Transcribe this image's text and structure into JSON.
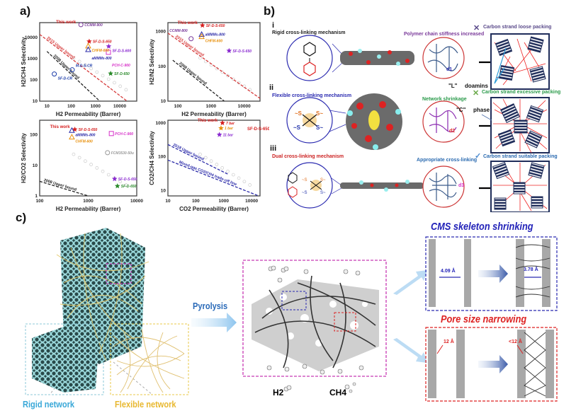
{
  "panels": {
    "a": "a)",
    "b": "b)",
    "c": "c)"
  },
  "chart_data": [
    {
      "type": "scatter",
      "xlabel": "H2 Permeability (Barrer)",
      "ylabel": "H2/CH4 Selectivity",
      "xscale": "log",
      "yscale": "log",
      "xlim": [
        5,
        50000
      ],
      "ylim": [
        10,
        50000
      ],
      "xticks": [
        "10",
        "100",
        "1000",
        "10000"
      ],
      "yticks": [
        "10",
        "100",
        "1000",
        "10000"
      ],
      "bounds": [
        {
          "name": "2015 Upper bound",
          "color": "#d63a3a",
          "points": [
            [
              5,
              14000
            ],
            [
              20000,
              10
            ]
          ]
        },
        {
          "name": "2008 Upper bound",
          "color": "#222222",
          "points": [
            [
              10,
              2200
            ],
            [
              1500,
              10
            ]
          ]
        }
      ],
      "points": [
        {
          "label": "CCMM-900",
          "x": 250,
          "y": 40000,
          "color": "#7a3a9a",
          "marker": "circle"
        },
        {
          "label": "SF-D-S-650",
          "x": 550,
          "y": 6500,
          "color": "#d62020",
          "marker": "star"
        },
        {
          "label": "CHFM-600",
          "x": 500,
          "y": 4000,
          "color": "#e8900c",
          "marker": "triangle"
        },
        {
          "label": "aMMMs-800",
          "x": 500,
          "y": 2700,
          "color": "#2a2aa8",
          "marker": "triangle"
        },
        {
          "label": "SF-D-S-600",
          "x": 3500,
          "y": 3800,
          "color": "#8a2ad0",
          "marker": "star"
        },
        {
          "label": "PCH-C-900",
          "x": 3400,
          "y": 2000,
          "color": "#d630c8",
          "marker": "square"
        },
        {
          "label": "SF-D-650",
          "x": 4200,
          "y": 200,
          "color": "#2a8a2a",
          "marker": "star"
        },
        {
          "label": "SF-D-CR",
          "x": 20,
          "y": 190,
          "color": "#1a3aa8",
          "marker": "circle"
        },
        {
          "label": "M-D-S-CR",
          "x": 110,
          "y": 300,
          "color": "#1a3aa8",
          "marker": "circle"
        }
      ],
      "annotations": [
        "This work"
      ]
    },
    {
      "type": "scatter",
      "xlabel": "H2 Permeability (Barrer)",
      "ylabel": "H2/N2 Selectivity",
      "xscale": "log",
      "yscale": "log",
      "xlim": [
        50,
        30000
      ],
      "ylim": [
        10,
        1800
      ],
      "xticks": [
        "100",
        "1000",
        "10000"
      ],
      "yticks": [
        "10",
        "100",
        "1000"
      ],
      "bounds": [
        {
          "name": "2015 Upper bound",
          "color": "#d63a3a",
          "points": [
            [
              50,
              900
            ],
            [
              30000,
              12
            ]
          ]
        },
        {
          "name": "2008 Upper bound",
          "color": "#222222",
          "points": [
            [
              70,
              150
            ],
            [
              2500,
              10
            ]
          ]
        }
      ],
      "points": [
        {
          "label": "SF-D-S-650",
          "x": 550,
          "y": 1500,
          "color": "#d62020",
          "marker": "star"
        },
        {
          "label": "aMMMs-800",
          "x": 520,
          "y": 830,
          "color": "#2a2aa8",
          "marker": "triangle"
        },
        {
          "label": "CHFM-600",
          "x": 520,
          "y": 720,
          "color": "#e8900c",
          "marker": "triangle"
        },
        {
          "label": "CCMM-800",
          "x": 250,
          "y": 620,
          "color": "#7a3a9a",
          "marker": "circle"
        },
        {
          "label": "SF-D-S-650",
          "x": 3500,
          "y": 280,
          "color": "#8a2ad0",
          "marker": "star"
        }
      ],
      "annotations": [
        "This work"
      ]
    },
    {
      "type": "scatter",
      "xlabel": "H2 Permeability (Barrer)",
      "ylabel": "H2/CO2 Selectivity",
      "xscale": "log",
      "yscale": "log",
      "xlim": [
        100,
        10000
      ],
      "ylim": [
        1,
        300
      ],
      "xticks": [
        "100",
        "1000",
        "10000"
      ],
      "yticks": [
        "1",
        "10",
        "100"
      ],
      "bounds": [
        {
          "name": "2008 Upper bound",
          "color": "#222222",
          "points": [
            [
              100,
              3
            ],
            [
              1000,
              1
            ]
          ]
        }
      ],
      "points": [
        {
          "label": "SF-D-S-650",
          "x": 530,
          "y": 150,
          "color": "#d62020",
          "marker": "star"
        },
        {
          "label": "aMMMs-800",
          "x": 460,
          "y": 140,
          "color": "#2a2aa8",
          "marker": "triangle"
        },
        {
          "label": "CHFM-600",
          "x": 460,
          "y": 85,
          "color": "#e8900c",
          "marker": "triangle"
        },
        {
          "label": "PCH-C-900",
          "x": 3000,
          "y": 110,
          "color": "#d630c8",
          "marker": "square"
        },
        {
          "label": "FCM3530-50u",
          "x": 2500,
          "y": 26,
          "color": "#999999",
          "marker": "circle"
        },
        {
          "label": "SF-D-S-650",
          "x": 3500,
          "y": 3.6,
          "color": "#8a2ad0",
          "marker": "star"
        },
        {
          "label": "SF-D-650",
          "x": 4000,
          "y": 2.1,
          "color": "#2a8a2a",
          "marker": "star"
        }
      ],
      "annotations": [
        "This work"
      ]
    },
    {
      "type": "scatter",
      "xlabel": "CO2 Permeability (Barrer)",
      "ylabel": "CO2/CH4 Selectivity",
      "xscale": "log",
      "yscale": "log",
      "xlim": [
        10,
        20000
      ],
      "ylim": [
        7,
        1200
      ],
      "xticks": [
        "10",
        "100",
        "1000",
        "10000"
      ],
      "yticks": [
        "10",
        "100",
        "1000"
      ],
      "bounds": [
        {
          "name": "2018 Upper bound",
          "color": "#2a2aa8",
          "points": [
            [
              10,
              230
            ],
            [
              1500,
              30
            ]
          ]
        },
        {
          "name": "Mixed-gas CO2/CH4 trade-off line",
          "color": "#2a2aa8",
          "points": [
            [
              10,
              80
            ],
            [
              18000,
              7
            ]
          ]
        }
      ],
      "points": [
        {
          "label": "7 bar",
          "x": 900,
          "y": 1000,
          "color": "#d62020",
          "marker": "star"
        },
        {
          "label": "1 bar",
          "x": 800,
          "y": 700,
          "color": "#e8900c",
          "marker": "star"
        },
        {
          "label": "11 bar",
          "x": 700,
          "y": 450,
          "color": "#8a2ad0",
          "marker": "star"
        }
      ],
      "annotations": [
        "This work",
        "SF-D-S-650"
      ]
    }
  ],
  "panel_b": {
    "rows": [
      {
        "numeral": "i",
        "mechanism": "Rigid cross-linking mechanism",
        "note": "Polymer chain stiffness increased",
        "d": "d1",
        "verdict": "Carbon strand loose packing",
        "verdict_icon": "cross-icon"
      },
      {
        "numeral": "ii",
        "mechanism": "Flexible cross-linking mechanism",
        "note": "Network shrinkage",
        "d": "d2",
        "verdict": "Carbon strand excessive packing",
        "verdict_icon": "cross-icon"
      },
      {
        "numeral": "iii",
        "mechanism": "Dual cross-linking mechanism",
        "note": "Appropriate cross-linking",
        "d": "d3",
        "verdict": "Carbon strand suitable packing",
        "verdict_icon": "check-icon"
      }
    ],
    "L_label": "\"L\"",
    "C_label": "\"C\"",
    "domains_label": "doamins",
    "phase_label": "phase"
  },
  "panel_c": {
    "rigid": "Rigid network",
    "flexible": "Flexible network",
    "pyrolysis": "Pyrolysis",
    "h2": "H2",
    "ch4": "CH4",
    "shrink_title": "CMS skeleton shrinking",
    "shrink_before": "4.09 Å",
    "shrink_after": "3.78 Å",
    "pore_title": "Pore size narrowing",
    "pore_before": "12 Å",
    "pore_after": "<12 Å"
  }
}
